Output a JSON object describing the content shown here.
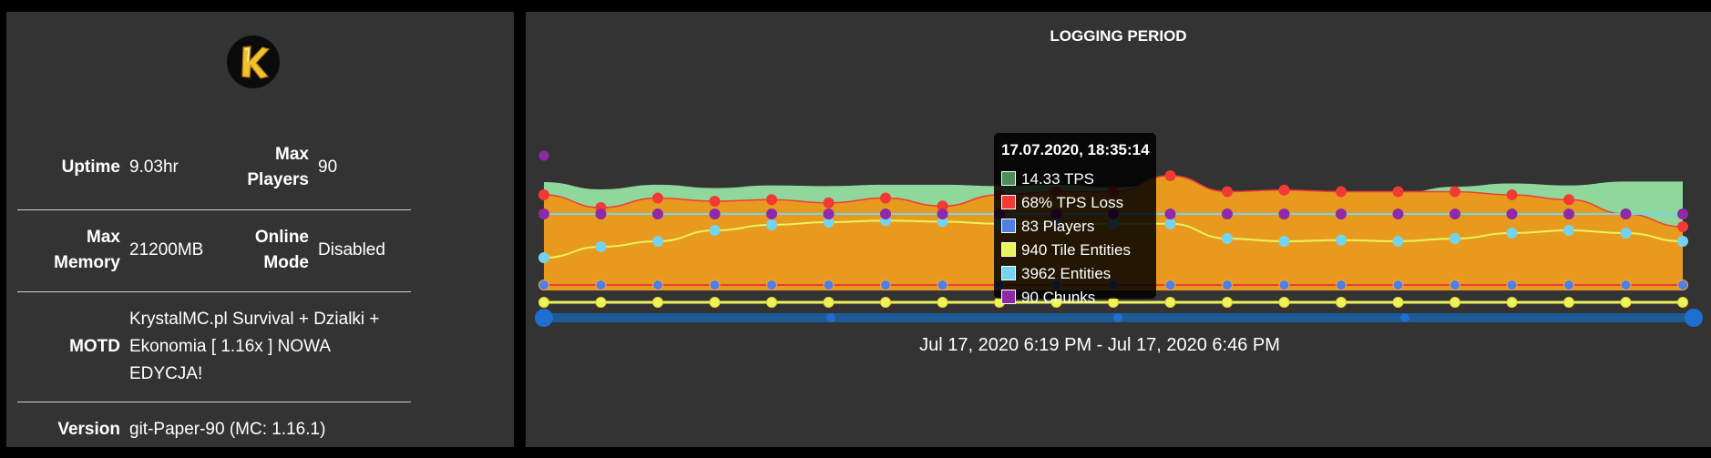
{
  "server_info": {
    "rows": [
      {
        "k1": "Uptime",
        "v1": "9.03hr",
        "k2a": "Max",
        "k2b": "Players",
        "v2": "90"
      },
      {
        "k1a": "Max",
        "k1b": "Memory",
        "v1": "21200MB",
        "k2a": "Online",
        "k2b": "Mode",
        "v2": "Disabled"
      }
    ],
    "motd_label": "MOTD",
    "motd_lines": [
      "KrystalMC.pl Survival + Dzialki +",
      "Ekonomia [ 1.16x ] NOWA",
      "EDYCJA!"
    ],
    "version_label": "Version",
    "version_value": "git-Paper-90 (MC: 1.16.1)"
  },
  "logo": {
    "letter": "K",
    "colors": {
      "bg": "#000000",
      "gold": "#f2c12e"
    }
  },
  "chart": {
    "title": "LOGGING PERIOD",
    "range_label": "Jul 17, 2020 6:19 PM - Jul 17, 2020 6:46 PM",
    "tooltip": {
      "title": "17.07.2020, 18:35:14",
      "items": [
        {
          "label": "14.33 TPS",
          "color": "#4c8c5b"
        },
        {
          "label": "68% TPS Loss",
          "color": "#f23a35"
        },
        {
          "label": "83 Players",
          "color": "#4f7fe0"
        },
        {
          "label": "940 Tile Entities",
          "color": "#eaf55c"
        },
        {
          "label": "3962 Entities",
          "color": "#74d4f0"
        },
        {
          "label": "90 Chunks",
          "color": "#8e2aa8"
        }
      ]
    }
  },
  "chart_data": {
    "type": "area",
    "title": "LOGGING PERIOD",
    "x_count": 21,
    "series": [
      {
        "name": "TPS",
        "color": "#8fd79a",
        "values": [
          19.3,
          18.2,
          18.9,
          18.4,
          18.8,
          18.7,
          18.9,
          18.9,
          18.7,
          18.9,
          18.5,
          19.2,
          17.4,
          17.3,
          17.3,
          17.6,
          18.6,
          19.1,
          18.8,
          19.4,
          19.4
        ]
      },
      {
        "name": "TPS Loss",
        "color": "#f5a623",
        "values": [
          60,
          52,
          58,
          56,
          57,
          55,
          58,
          53,
          60,
          62,
          62,
          72,
          62,
          63,
          62,
          62,
          62,
          60,
          57,
          48,
          40
        ]
      },
      {
        "name": "Players",
        "color": "#4f7fe0",
        "values": [
          83,
          83,
          83,
          83,
          83,
          83,
          83,
          83,
          83,
          83,
          83,
          83,
          83,
          83,
          83,
          83,
          83,
          83,
          83,
          83,
          83
        ]
      },
      {
        "name": "Tile Entities",
        "color": "#eaf55c",
        "values": [
          940,
          940,
          940,
          940,
          940,
          940,
          940,
          940,
          940,
          940,
          940,
          940,
          940,
          940,
          940,
          940,
          940,
          940,
          940,
          940,
          940
        ]
      },
      {
        "name": "Entities",
        "color": "#74d4f0",
        "values": [
          3900,
          3920,
          3930,
          3950,
          3960,
          3965,
          3968,
          3966,
          3962,
          3962,
          3962,
          3962,
          3935,
          3930,
          3932,
          3930,
          3935,
          3945,
          3950,
          3945,
          3930
        ]
      },
      {
        "name": "Chunks",
        "color": "#8e2aa8",
        "values": [
          90,
          90,
          90,
          90,
          90,
          90,
          90,
          90,
          90,
          90,
          90,
          90,
          90,
          90,
          90,
          90,
          90,
          90,
          90,
          90,
          90
        ]
      }
    ]
  }
}
